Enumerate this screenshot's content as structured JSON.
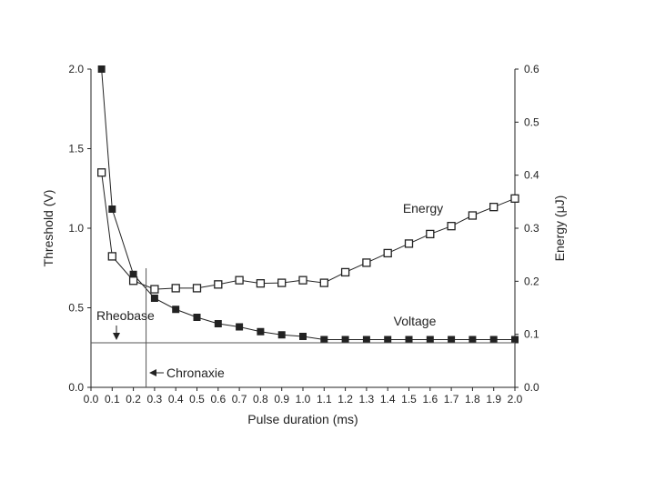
{
  "chart_data": {
    "type": "line",
    "xlabel": "Pulse duration (ms)",
    "ylabel": "Threshold (V)",
    "y2label": "Energy (μJ)",
    "xlim": [
      0,
      2.0
    ],
    "ylim": [
      0,
      2.0
    ],
    "y2lim": [
      0,
      0.6
    ],
    "xticks": [
      "0.0",
      "0.1",
      "0.2",
      "0.3",
      "0.4",
      "0.5",
      "0.6",
      "0.7",
      "0.8",
      "0.9",
      "1.0",
      "1.1",
      "1.2",
      "1.3",
      "1.4",
      "1.5",
      "1.6",
      "1.7",
      "1.8",
      "1.9",
      "2.0"
    ],
    "yticks": [
      "0.0",
      "0.5",
      "1.0",
      "1.5",
      "2.0"
    ],
    "y2ticks": [
      "0.0",
      "0.1",
      "0.2",
      "0.3",
      "0.4",
      "0.5",
      "0.6"
    ],
    "grid": false,
    "series": [
      {
        "name": "Voltage",
        "axis": "left",
        "marker": "filled-square",
        "x": [
          0.05,
          0.1,
          0.2,
          0.3,
          0.4,
          0.5,
          0.6,
          0.7,
          0.8,
          0.9,
          1.0,
          1.1,
          1.2,
          1.3,
          1.4,
          1.5,
          1.6,
          1.7,
          1.8,
          1.9,
          2.0
        ],
        "values": [
          2.0,
          1.12,
          0.71,
          0.56,
          0.49,
          0.44,
          0.4,
          0.38,
          0.35,
          0.33,
          0.32,
          0.3,
          0.3,
          0.3,
          0.3,
          0.3,
          0.3,
          0.3,
          0.3,
          0.3,
          0.3
        ]
      },
      {
        "name": "Energy",
        "axis": "right",
        "marker": "open-square",
        "x": [
          0.05,
          0.1,
          0.2,
          0.3,
          0.4,
          0.5,
          0.6,
          0.7,
          0.8,
          0.9,
          1.0,
          1.1,
          1.2,
          1.3,
          1.4,
          1.5,
          1.6,
          1.7,
          1.8,
          1.9,
          2.0
        ],
        "values": [
          0.405,
          0.247,
          0.201,
          0.185,
          0.187,
          0.187,
          0.194,
          0.202,
          0.196,
          0.197,
          0.202,
          0.197,
          0.217,
          0.235,
          0.253,
          0.271,
          0.289,
          0.304,
          0.324,
          0.34,
          0.356
        ]
      }
    ],
    "rheobase": 0.28,
    "chronaxie": 0.26,
    "annotations": {
      "energy_label": "Energy",
      "voltage_label": "Voltage",
      "rheobase_label": "Rheobase",
      "chronaxie_label": "Chronaxie"
    }
  }
}
